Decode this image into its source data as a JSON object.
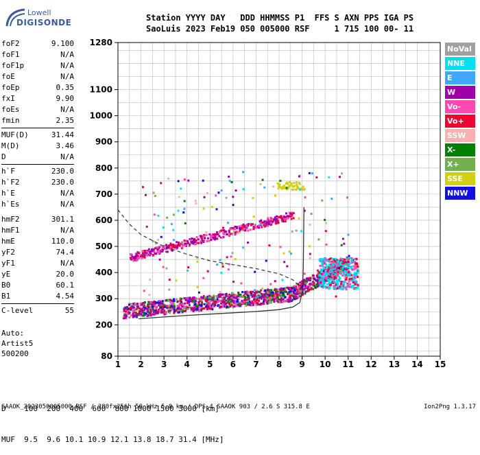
{
  "logo": {
    "line1": "Lowell",
    "line2": "DIGISONDE"
  },
  "header": {
    "row1": "Station YYYY DAY   DDD HHMMSS P1  FFS S AXN PPS IGA PS",
    "row2": "SaoLuis 2023 Feb19 050 005000 RSF     1 715 100 00- 11"
  },
  "params": {
    "group1": [
      [
        "foF2",
        "9.100"
      ],
      [
        "foF1",
        "N/A"
      ],
      [
        "foF1p",
        "N/A"
      ],
      [
        "foE",
        "N/A"
      ],
      [
        "foEp",
        "0.35"
      ],
      [
        "fxI",
        "9.90"
      ],
      [
        "foEs",
        "N/A"
      ],
      [
        "fmin",
        "2.35"
      ]
    ],
    "group2": [
      [
        "MUF(D)",
        "31.44"
      ],
      [
        "M(D)",
        "3.46"
      ],
      [
        "D",
        "N/A"
      ]
    ],
    "group3": [
      [
        "h`F",
        "230.0"
      ],
      [
        "h`F2",
        "230.0"
      ],
      [
        "h`E",
        "N/A"
      ],
      [
        "h`Es",
        "N/A"
      ]
    ],
    "group4": [
      [
        "hmF2",
        "301.1"
      ],
      [
        "hmF1",
        "N/A"
      ],
      [
        "hmE",
        "110.0"
      ],
      [
        "yF2",
        "74.4"
      ],
      [
        "yF1",
        "N/A"
      ],
      [
        "yE",
        "20.0"
      ],
      [
        "B0",
        "60.1"
      ],
      [
        "B1",
        "4.54"
      ]
    ],
    "group5": [
      [
        "C-level",
        "55"
      ]
    ]
  },
  "auto": {
    "line1": "Auto:",
    "line2": "Artist5",
    "line3": "500200"
  },
  "legend": [
    {
      "label": "NoVal",
      "color": "#a0a0a0"
    },
    {
      "label": "NNE",
      "color": "#00e0f0"
    },
    {
      "label": "E",
      "color": "#40a8f8"
    },
    {
      "label": "W",
      "color": "#a000a8"
    },
    {
      "label": "Vo-",
      "color": "#ff48b0"
    },
    {
      "label": "Vo+",
      "color": "#f00030"
    },
    {
      "label": "SSW",
      "color": "#f8b0b0"
    },
    {
      "label": "X-",
      "color": "#008000"
    },
    {
      "label": "X+",
      "color": "#70b050"
    },
    {
      "label": "SSE",
      "color": "#d0d010"
    },
    {
      "label": "NNW",
      "color": "#1010e0"
    }
  ],
  "dtable": {
    "row1": "D    100  200  400  600  800 1000 1500 3000 [km]",
    "row2": "MUF  9.5  9.6 10.1 10.9 12.1 13.8 18.7 31.4 [MHz]"
  },
  "footer": "SAAOK_2023050005000.RSF / 280fx256h 50 kHz 5.0 km / DPS-4 SAAOK 903 / 2.6 S 315.8 E",
  "version": "Ion2Png 1.3.17",
  "chart_data": {
    "type": "scatter",
    "xlabel": "",
    "ylabel": "",
    "xlim": [
      1,
      15
    ],
    "ylim": [
      80,
      1280
    ],
    "xticks": [
      1,
      2,
      3,
      4,
      5,
      6,
      7,
      8,
      9,
      10,
      11,
      12,
      13,
      14,
      15
    ],
    "yticks": [
      80,
      200,
      300,
      400,
      500,
      600,
      700,
      800,
      900,
      1000,
      1100,
      1280
    ],
    "grid": true,
    "profile_solid": [
      [
        1.9,
        223
      ],
      [
        3,
        230
      ],
      [
        4,
        236
      ],
      [
        5,
        241
      ],
      [
        6,
        246
      ],
      [
        7,
        251
      ],
      [
        8,
        258
      ],
      [
        8.6,
        268
      ],
      [
        8.9,
        285
      ],
      [
        9.02,
        330
      ],
      [
        9.05,
        420
      ],
      [
        9.07,
        560
      ],
      [
        9.08,
        650
      ]
    ],
    "profile_dashed": [
      [
        1,
        640
      ],
      [
        1.5,
        585
      ],
      [
        2,
        545
      ],
      [
        3,
        500
      ],
      [
        4,
        470
      ],
      [
        5,
        445
      ],
      [
        6,
        430
      ],
      [
        7,
        415
      ],
      [
        8,
        395
      ],
      [
        8.6,
        372
      ],
      [
        9,
        340
      ]
    ]
  }
}
